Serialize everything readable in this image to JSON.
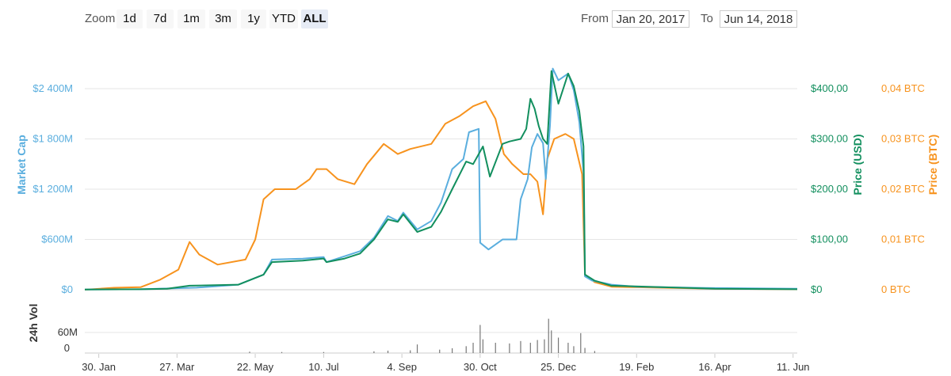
{
  "toolbar": {
    "zoom_label": "Zoom",
    "zoom_buttons": [
      "1d",
      "7d",
      "1m",
      "3m",
      "1y",
      "YTD",
      "ALL"
    ],
    "active_zoom": "ALL",
    "from_label": "From",
    "from_value": "Jan 20, 2017",
    "to_label": "To",
    "to_value": "Jun 14, 2018"
  },
  "colors": {
    "market_cap": "#5aaede",
    "price_usd": "#128f5e",
    "price_btc": "#f7931e",
    "volume": "#777777",
    "grid": "#e6e6e6"
  },
  "chart_data": {
    "type": "line",
    "x_start": "2017-01-20",
    "x_end": "2018-06-14",
    "x_ticks": [
      "30. Jan",
      "27. Mar",
      "22. May",
      "10. Jul",
      "4. Sep",
      "30. Oct",
      "25. Dec",
      "19. Feb",
      "16. Apr",
      "11. Jun"
    ],
    "x_tick_dates": [
      "2017-01-30",
      "2017-03-27",
      "2017-05-22",
      "2017-07-10",
      "2017-09-04",
      "2017-10-30",
      "2017-12-25",
      "2018-02-19",
      "2018-04-16",
      "2018-06-11"
    ],
    "axes": {
      "market_cap": {
        "title": "Market Cap",
        "ticks": [
          "$0",
          "$600M",
          "$1 200M",
          "$1 800M",
          "$2 400M"
        ],
        "ylim": [
          0,
          2400
        ]
      },
      "price_usd": {
        "title": "Price (USD)",
        "ticks": [
          "$0",
          "$100,00",
          "$200,00",
          "$300,00",
          "$400,00"
        ],
        "ylim": [
          0,
          400
        ]
      },
      "price_btc": {
        "title": "Price (BTC)",
        "ticks": [
          "0 BTC",
          "0,01 BTC",
          "0,02 BTC",
          "0,03 BTC",
          "0,04 BTC"
        ],
        "ylim": [
          0,
          0.04
        ]
      },
      "volume": {
        "title": "24h Vol",
        "ticks": [
          "0",
          "60M"
        ],
        "ylim": [
          0,
          60
        ]
      }
    },
    "series": [
      {
        "name": "Market Cap",
        "key": "market_cap",
        "axis": "market_cap",
        "points": [
          [
            "2017-01-20",
            2
          ],
          [
            "2017-03-01",
            6
          ],
          [
            "2017-04-10",
            25
          ],
          [
            "2017-05-10",
            60
          ],
          [
            "2017-05-28",
            180
          ],
          [
            "2017-06-03",
            360
          ],
          [
            "2017-06-25",
            370
          ],
          [
            "2017-07-10",
            390
          ],
          [
            "2017-07-12",
            330
          ],
          [
            "2017-07-25",
            400
          ],
          [
            "2017-08-05",
            460
          ],
          [
            "2017-08-15",
            620
          ],
          [
            "2017-08-25",
            880
          ],
          [
            "2017-09-01",
            820
          ],
          [
            "2017-09-05",
            920
          ],
          [
            "2017-09-15",
            720
          ],
          [
            "2017-09-25",
            820
          ],
          [
            "2017-10-02",
            1040
          ],
          [
            "2017-10-10",
            1440
          ],
          [
            "2017-10-18",
            1560
          ],
          [
            "2017-10-22",
            1880
          ],
          [
            "2017-10-29",
            1920
          ],
          [
            "2017-10-30",
            560
          ],
          [
            "2017-11-05",
            480
          ],
          [
            "2017-11-15",
            600
          ],
          [
            "2017-11-25",
            600
          ],
          [
            "2017-11-28",
            1080
          ],
          [
            "2017-12-03",
            1320
          ],
          [
            "2017-12-06",
            1700
          ],
          [
            "2017-12-10",
            1860
          ],
          [
            "2017-12-14",
            1750
          ],
          [
            "2017-12-16",
            1320
          ],
          [
            "2017-12-19",
            1960
          ],
          [
            "2017-12-21",
            2640
          ],
          [
            "2017-12-25",
            2500
          ],
          [
            "2018-01-01",
            2580
          ],
          [
            "2018-01-05",
            2380
          ],
          [
            "2018-01-09",
            2000
          ],
          [
            "2018-01-12",
            1400
          ],
          [
            "2018-01-13",
            160
          ],
          [
            "2018-01-18",
            110
          ],
          [
            "2018-02-01",
            60
          ],
          [
            "2018-02-19",
            35
          ],
          [
            "2018-04-16",
            20
          ],
          [
            "2018-06-14",
            12
          ]
        ]
      },
      {
        "name": "Price (USD)",
        "key": "price_usd",
        "axis": "price_usd",
        "points": [
          [
            "2017-01-20",
            0.3
          ],
          [
            "2017-03-01",
            1
          ],
          [
            "2017-03-20",
            2
          ],
          [
            "2017-04-05",
            8
          ],
          [
            "2017-05-10",
            10
          ],
          [
            "2017-05-28",
            30
          ],
          [
            "2017-06-03",
            55
          ],
          [
            "2017-06-25",
            58
          ],
          [
            "2017-07-10",
            62
          ],
          [
            "2017-07-12",
            55
          ],
          [
            "2017-07-25",
            62
          ],
          [
            "2017-08-05",
            72
          ],
          [
            "2017-08-15",
            100
          ],
          [
            "2017-08-25",
            140
          ],
          [
            "2017-09-01",
            135
          ],
          [
            "2017-09-05",
            150
          ],
          [
            "2017-09-15",
            115
          ],
          [
            "2017-09-25",
            125
          ],
          [
            "2017-10-02",
            155
          ],
          [
            "2017-10-10",
            200
          ],
          [
            "2017-10-20",
            255
          ],
          [
            "2017-10-25",
            250
          ],
          [
            "2017-11-01",
            285
          ],
          [
            "2017-11-06",
            225
          ],
          [
            "2017-11-15",
            290
          ],
          [
            "2017-11-20",
            295
          ],
          [
            "2017-11-28",
            300
          ],
          [
            "2017-12-02",
            320
          ],
          [
            "2017-12-05",
            380
          ],
          [
            "2017-12-08",
            360
          ],
          [
            "2017-12-11",
            325
          ],
          [
            "2017-12-14",
            300
          ],
          [
            "2017-12-17",
            290
          ],
          [
            "2017-12-20",
            435
          ],
          [
            "2017-12-25",
            370
          ],
          [
            "2018-01-01",
            430
          ],
          [
            "2018-01-05",
            405
          ],
          [
            "2018-01-09",
            355
          ],
          [
            "2018-01-12",
            285
          ],
          [
            "2018-01-13",
            30
          ],
          [
            "2018-01-20",
            18
          ],
          [
            "2018-02-01",
            8
          ],
          [
            "2018-04-16",
            2
          ],
          [
            "2018-06-14",
            1
          ]
        ]
      },
      {
        "name": "Price (BTC)",
        "key": "price_btc",
        "axis": "price_btc",
        "points": [
          [
            "2017-01-20",
            0
          ],
          [
            "2017-02-10",
            0.0004
          ],
          [
            "2017-03-01",
            0.0005
          ],
          [
            "2017-03-15",
            0.002
          ],
          [
            "2017-03-28",
            0.004
          ],
          [
            "2017-04-05",
            0.0095
          ],
          [
            "2017-04-12",
            0.007
          ],
          [
            "2017-04-25",
            0.005
          ],
          [
            "2017-05-15",
            0.006
          ],
          [
            "2017-05-22",
            0.01
          ],
          [
            "2017-05-28",
            0.018
          ],
          [
            "2017-06-05",
            0.02
          ],
          [
            "2017-06-20",
            0.02
          ],
          [
            "2017-06-30",
            0.022
          ],
          [
            "2017-07-05",
            0.024
          ],
          [
            "2017-07-12",
            0.024
          ],
          [
            "2017-07-20",
            0.022
          ],
          [
            "2017-08-01",
            0.021
          ],
          [
            "2017-08-10",
            0.025
          ],
          [
            "2017-08-22",
            0.029
          ],
          [
            "2017-09-01",
            0.027
          ],
          [
            "2017-09-10",
            0.028
          ],
          [
            "2017-09-25",
            0.029
          ],
          [
            "2017-10-05",
            0.033
          ],
          [
            "2017-10-15",
            0.0345
          ],
          [
            "2017-10-25",
            0.0365
          ],
          [
            "2017-11-03",
            0.0375
          ],
          [
            "2017-11-10",
            0.034
          ],
          [
            "2017-11-16",
            0.027
          ],
          [
            "2017-11-22",
            0.025
          ],
          [
            "2017-11-30",
            0.023
          ],
          [
            "2017-12-05",
            0.023
          ],
          [
            "2017-12-10",
            0.0215
          ],
          [
            "2017-12-14",
            0.015
          ],
          [
            "2017-12-17",
            0.026
          ],
          [
            "2017-12-22",
            0.03
          ],
          [
            "2017-12-30",
            0.031
          ],
          [
            "2018-01-05",
            0.03
          ],
          [
            "2018-01-11",
            0.023
          ],
          [
            "2018-01-13",
            0.003
          ],
          [
            "2018-01-20",
            0.0015
          ],
          [
            "2018-02-01",
            0.0006
          ],
          [
            "2018-04-16",
            0.0002
          ],
          [
            "2018-06-14",
            0.0001
          ]
        ]
      }
    ],
    "volume": {
      "name": "24h Vol",
      "key": "volume",
      "points": [
        [
          "2017-05-18",
          4
        ],
        [
          "2017-06-10",
          3
        ],
        [
          "2017-07-10",
          3
        ],
        [
          "2017-08-15",
          5
        ],
        [
          "2017-08-25",
          7
        ],
        [
          "2017-09-10",
          8
        ],
        [
          "2017-09-15",
          25
        ],
        [
          "2017-10-01",
          10
        ],
        [
          "2017-10-10",
          14
        ],
        [
          "2017-10-20",
          20
        ],
        [
          "2017-10-25",
          30
        ],
        [
          "2017-10-30",
          82
        ],
        [
          "2017-11-01",
          40
        ],
        [
          "2017-11-10",
          30
        ],
        [
          "2017-11-20",
          28
        ],
        [
          "2017-11-28",
          35
        ],
        [
          "2017-12-05",
          30
        ],
        [
          "2017-12-10",
          38
        ],
        [
          "2017-12-15",
          40
        ],
        [
          "2017-12-18",
          100
        ],
        [
          "2017-12-20",
          66
        ],
        [
          "2017-12-25",
          45
        ],
        [
          "2018-01-01",
          30
        ],
        [
          "2018-01-05",
          20
        ],
        [
          "2018-01-10",
          58
        ],
        [
          "2018-01-13",
          15
        ],
        [
          "2018-01-20",
          6
        ]
      ]
    }
  }
}
